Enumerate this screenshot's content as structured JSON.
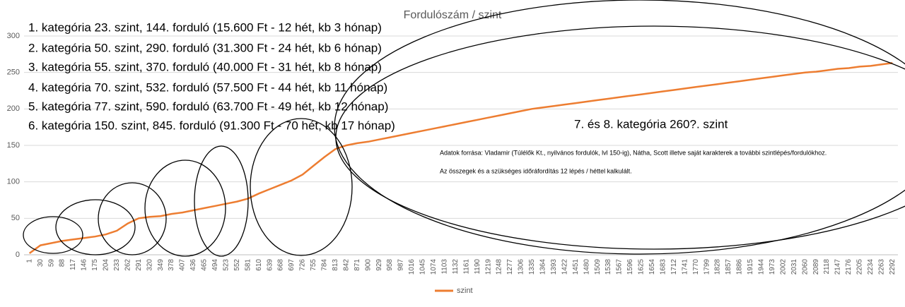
{
  "chart_data": {
    "type": "line",
    "title": "Fordulószám / szint",
    "categories": [
      1,
      30,
      59,
      88,
      117,
      146,
      175,
      204,
      233,
      262,
      291,
      320,
      349,
      378,
      407,
      436,
      465,
      494,
      523,
      552,
      581,
      610,
      639,
      668,
      697,
      726,
      755,
      784,
      813,
      842,
      871,
      900,
      929,
      958,
      987,
      1016,
      1045,
      1074,
      1103,
      1132,
      1161,
      1190,
      1219,
      1248,
      1277,
      1306,
      1335,
      1364,
      1393,
      1422,
      1451,
      1480,
      1509,
      1538,
      1567,
      1596,
      1625,
      1654,
      1683,
      1712,
      1741,
      1770,
      1799,
      1828,
      1857,
      1886,
      1915,
      1944,
      1973,
      2002,
      2031,
      2060,
      2089,
      2118,
      2147,
      2176,
      2205,
      2234,
      2263,
      2292
    ],
    "series": [
      {
        "name": "szint",
        "color": "#ed7d31",
        "values": [
          2,
          13,
          16,
          19,
          21,
          23,
          25,
          28,
          33,
          43,
          50,
          52,
          53,
          56,
          58,
          61,
          64,
          67,
          70,
          73,
          77,
          84,
          90,
          96,
          102,
          110,
          122,
          134,
          145,
          150,
          153,
          155,
          158,
          161,
          164,
          167,
          170,
          173,
          176,
          179,
          182,
          185,
          188,
          191,
          194,
          197,
          200,
          202,
          204,
          206,
          208,
          210,
          212,
          214,
          216,
          218,
          220,
          222,
          224,
          226,
          228,
          230,
          232,
          234,
          236,
          238,
          240,
          242,
          244,
          246,
          248,
          250,
          251,
          253,
          255,
          256,
          258,
          259,
          261,
          263
        ]
      }
    ],
    "ylim": [
      0,
      300
    ],
    "yticks": [
      0,
      50,
      100,
      150,
      200,
      250,
      300
    ],
    "grid": true,
    "legend": "bottom",
    "annotations": [
      "1. kategória 23. szint, 144. forduló (15.600 Ft - 12 hét, kb 3 hónap)",
      "2. kategória 50. szint, 290. forduló  (31.300 Ft - 24 hét, kb 6 hónap)",
      "3. kategória 55. szint, 370. forduló (40.000 Ft - 31 hét, kb 8 hónap)",
      "4. kategória 70. szint, 532. forduló (57.500 Ft - 44 hét, kb 11 hónap)",
      "5. kategória 77. szint, 590. forduló  (63.700 Ft - 49 hét, kb 12 hónap)",
      "6. kategória 150. szint, 845. forduló  (91.300 Ft - 70 hét, kb 17 hónap)",
      "7. és 8. kategória 260?. szint",
      "Adatok forrása: Vladamir (Túlélők Kt., nyilvános fordulók, lvl 150-ig), Nátha, Scott illetve saját karakterek a további szintlépés/fordulókhoz.",
      "Az összegek és a szükséges időráfordítás 12 lépés / héttel kalkulált."
    ]
  }
}
